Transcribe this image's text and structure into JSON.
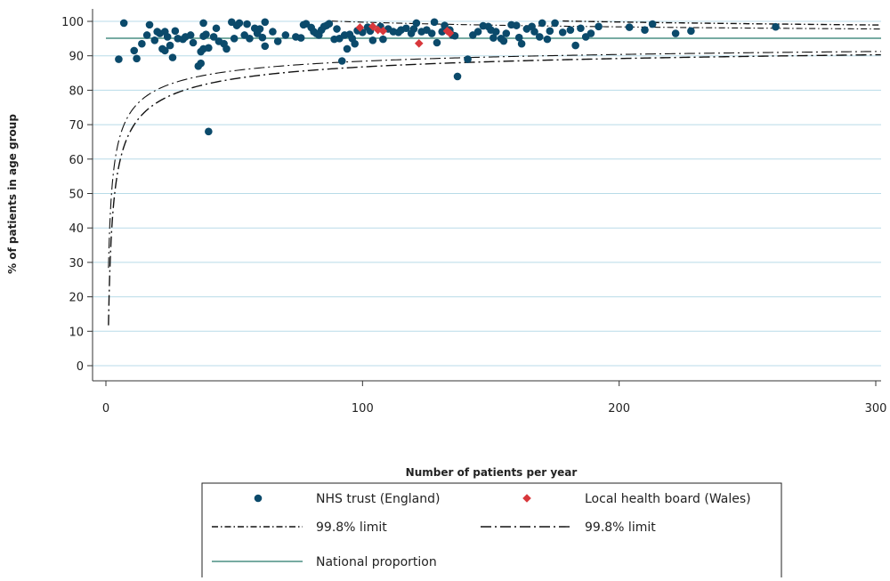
{
  "chart_data": {
    "type": "scatter",
    "title": "",
    "xlabel": "Number of patients per year",
    "ylabel": "% of patients in age group",
    "xlim": [
      0,
      300
    ],
    "ylim": [
      0,
      100
    ],
    "xticks": [
      0,
      100,
      200,
      300
    ],
    "yticks": [
      0,
      10,
      20,
      30,
      40,
      50,
      60,
      70,
      80,
      90,
      100
    ],
    "grid": "horizontal",
    "legend_position": "bottom",
    "national_proportion": 95.1,
    "series": [
      {
        "name": "NHS trust (England)",
        "kind": "points",
        "marker": "circle",
        "color": "#0b4a6b",
        "points": [
          [
            7,
            99.5
          ],
          [
            5,
            89
          ],
          [
            11,
            91.5
          ],
          [
            12,
            89.2
          ],
          [
            14,
            93.5
          ],
          [
            16,
            96
          ],
          [
            17,
            99
          ],
          [
            19,
            94.5
          ],
          [
            20,
            97
          ],
          [
            21,
            96.5
          ],
          [
            22,
            92
          ],
          [
            23,
            91.5
          ],
          [
            23,
            97
          ],
          [
            24,
            95.5
          ],
          [
            25,
            93
          ],
          [
            26,
            89.5
          ],
          [
            27,
            97.2
          ],
          [
            28,
            95
          ],
          [
            30,
            94.8
          ],
          [
            31,
            95.5
          ],
          [
            33,
            96
          ],
          [
            34,
            93.8
          ],
          [
            36,
            87
          ],
          [
            37,
            87.8
          ],
          [
            37,
            91.2
          ],
          [
            38,
            92
          ],
          [
            38,
            99.5
          ],
          [
            38,
            95.7
          ],
          [
            39,
            96.2
          ],
          [
            40,
            68
          ],
          [
            40,
            92.3
          ],
          [
            42,
            95.5
          ],
          [
            43,
            98
          ],
          [
            44,
            94.2
          ],
          [
            46,
            93.5
          ],
          [
            47,
            92
          ],
          [
            49,
            99.8
          ],
          [
            50,
            95
          ],
          [
            51,
            98.8
          ],
          [
            52,
            99.5
          ],
          [
            54,
            96
          ],
          [
            55,
            99.2
          ],
          [
            56,
            95
          ],
          [
            58,
            98
          ],
          [
            59,
            96.5
          ],
          [
            60,
            97.8
          ],
          [
            61,
            95.3
          ],
          [
            62,
            92.8
          ],
          [
            62,
            99.8
          ],
          [
            65,
            97
          ],
          [
            67,
            94.2
          ],
          [
            70,
            96
          ],
          [
            74,
            95.5
          ],
          [
            76,
            95.2
          ],
          [
            77,
            99
          ],
          [
            78,
            99.3
          ],
          [
            80,
            98.2
          ],
          [
            81,
            97
          ],
          [
            82,
            96.5
          ],
          [
            83,
            96
          ],
          [
            84,
            97.5
          ],
          [
            85,
            98.5
          ],
          [
            86,
            98.8
          ],
          [
            87,
            99.3
          ],
          [
            89,
            94.8
          ],
          [
            90,
            97.8
          ],
          [
            91,
            95
          ],
          [
            92,
            88.5
          ],
          [
            93,
            96
          ],
          [
            94,
            92
          ],
          [
            95,
            96.2
          ],
          [
            96,
            95
          ],
          [
            97,
            93.5
          ],
          [
            98,
            97.3
          ],
          [
            100,
            96.8
          ],
          [
            102,
            98.3
          ],
          [
            103,
            97.2
          ],
          [
            104,
            94.5
          ],
          [
            107,
            98.5
          ],
          [
            108,
            94.8
          ],
          [
            110,
            97.8
          ],
          [
            112,
            97
          ],
          [
            114,
            96.8
          ],
          [
            115,
            97.5
          ],
          [
            117,
            98
          ],
          [
            119,
            96.5
          ],
          [
            120,
            97.8
          ],
          [
            121,
            99.5
          ],
          [
            123,
            97
          ],
          [
            125,
            97.5
          ],
          [
            127,
            96.5
          ],
          [
            128,
            99.8
          ],
          [
            129,
            93.8
          ],
          [
            131,
            97
          ],
          [
            132,
            98.8
          ],
          [
            134,
            97.5
          ],
          [
            135,
            96
          ],
          [
            136,
            95.8
          ],
          [
            137,
            84
          ],
          [
            141,
            89
          ],
          [
            143,
            96
          ],
          [
            145,
            97
          ],
          [
            147,
            98.7
          ],
          [
            149,
            98.5
          ],
          [
            150,
            97.5
          ],
          [
            151,
            95.2
          ],
          [
            152,
            97
          ],
          [
            154,
            95
          ],
          [
            155,
            94.3
          ],
          [
            156,
            96.5
          ],
          [
            158,
            99
          ],
          [
            160,
            98.8
          ],
          [
            161,
            95.3
          ],
          [
            162,
            93.5
          ],
          [
            164,
            97.8
          ],
          [
            166,
            98.5
          ],
          [
            167,
            97
          ],
          [
            169,
            95.5
          ],
          [
            170,
            99.5
          ],
          [
            172,
            94.8
          ],
          [
            173,
            97.2
          ],
          [
            175,
            99.5
          ],
          [
            178,
            96.8
          ],
          [
            181,
            97.5
          ],
          [
            183,
            93
          ],
          [
            185,
            98
          ],
          [
            187,
            95.5
          ],
          [
            189,
            96.5
          ],
          [
            192,
            98.5
          ],
          [
            204,
            98.3
          ],
          [
            210,
            97.5
          ],
          [
            213,
            99.2
          ],
          [
            222,
            96.5
          ],
          [
            228,
            97.2
          ],
          [
            261,
            98.4
          ]
        ]
      },
      {
        "name": "Local health board (Wales)",
        "kind": "points",
        "marker": "diamond",
        "color": "#d8373b",
        "points": [
          [
            99,
            98.2
          ],
          [
            104,
            98.5
          ],
          [
            106,
            97.5
          ],
          [
            108,
            97.2
          ],
          [
            122,
            93.6
          ],
          [
            133,
            97.2
          ],
          [
            134,
            96.6
          ]
        ]
      },
      {
        "name": "99.8% limit",
        "kind": "control-limit",
        "style": "dash-dot",
        "z": 3.09,
        "color": "#111111"
      },
      {
        "name": "99.8% limit",
        "kind": "control-limit",
        "style": "dash-dot-wide",
        "z": 3.09,
        "color": "#111111"
      },
      {
        "name": "National proportion",
        "kind": "reference-line",
        "color": "#4a8f84"
      }
    ]
  }
}
